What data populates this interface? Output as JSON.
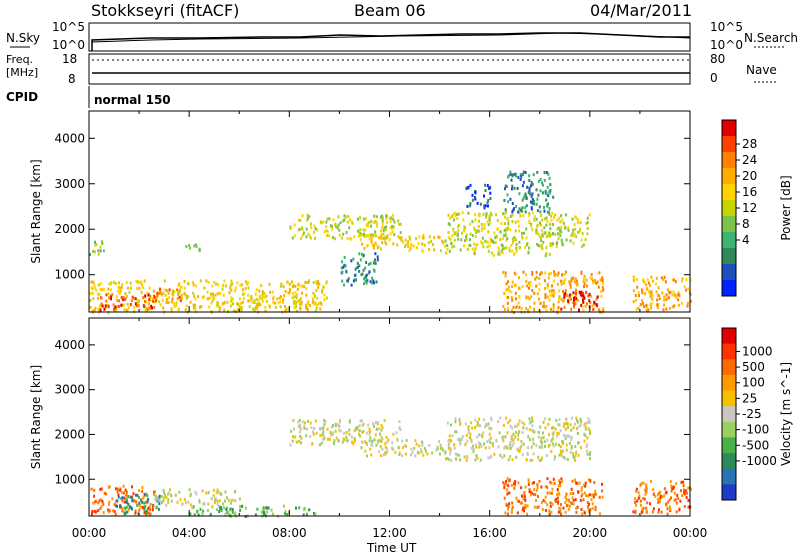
{
  "header": {
    "radar": "Stokkseyri (fitACF)",
    "beam": "Beam 06",
    "date": "04/Mar/2011"
  },
  "noise_panel": {
    "left_label": "N.Sky",
    "right_label": "N.Search",
    "left_ticks": [
      "10^5",
      "10^0"
    ],
    "right_ticks": [
      "10^5",
      "10^0"
    ]
  },
  "freq_panel": {
    "left_label_1": "Freq.",
    "left_label_2": "[MHz]",
    "left_ticks": [
      "18",
      "8"
    ],
    "right_label": "Nave",
    "right_ticks": [
      "80",
      "0"
    ]
  },
  "cpid": {
    "label": "CPID",
    "mode": "normal 150"
  },
  "chart_data": [
    {
      "type": "heatmap",
      "quantity": "Power",
      "xlabel": "",
      "ylabel": "Slant Range [km]",
      "xlim_hours": [
        0,
        24
      ],
      "ylim_km": [
        180,
        4600
      ],
      "y_ticks": [
        1000,
        2000,
        3000,
        4000
      ],
      "colorbar": {
        "label": "Power [dB]",
        "ticks": [
          "28",
          "24",
          "20",
          "16",
          "12",
          "8",
          "4"
        ],
        "colors": [
          "#0022ff",
          "#1f4fbf",
          "#2e8b57",
          "#3cb371",
          "#7cc34a",
          "#c8d400",
          "#ffd400",
          "#ffae00",
          "#ff7f00",
          "#ff4000",
          "#e00000"
        ]
      },
      "echo_regions": [
        {
          "t": [
            0.0,
            0.6
          ],
          "r": [
            1450,
            1800
          ],
          "level": 4
        },
        {
          "t": [
            0.0,
            9.5
          ],
          "r": [
            200,
            900
          ],
          "level": 6
        },
        {
          "t": [
            0.4,
            2.6
          ],
          "r": [
            250,
            600
          ],
          "level": 9
        },
        {
          "t": [
            2.4,
            3.8
          ],
          "r": [
            450,
            720
          ],
          "level": 8
        },
        {
          "t": [
            3.6,
            4.4
          ],
          "r": [
            1550,
            1700
          ],
          "level": 3
        },
        {
          "t": [
            8.0,
            12.5
          ],
          "r": [
            1800,
            2350
          ],
          "level": 5
        },
        {
          "t": [
            10.8,
            14.2
          ],
          "r": [
            1550,
            1900
          ],
          "level": 6
        },
        {
          "t": [
            10.0,
            11.5
          ],
          "r": [
            800,
            1500
          ],
          "level": 2
        },
        {
          "t": [
            14.2,
            18.5
          ],
          "r": [
            1450,
            2400
          ],
          "level": 5
        },
        {
          "t": [
            15.0,
            16.0
          ],
          "r": [
            2500,
            3000
          ],
          "level": 1
        },
        {
          "t": [
            16.5,
            18.5
          ],
          "r": [
            2400,
            3300
          ],
          "level": 2
        },
        {
          "t": [
            18.0,
            20.0
          ],
          "r": [
            1650,
            2350
          ],
          "level": 5
        },
        {
          "t": [
            16.5,
            20.5
          ],
          "r": [
            200,
            1100
          ],
          "level": 7
        },
        {
          "t": [
            18.8,
            20.3
          ],
          "r": [
            250,
            650
          ],
          "level": 10
        },
        {
          "t": [
            21.7,
            24.0
          ],
          "r": [
            250,
            1000
          ],
          "level": 7
        }
      ]
    },
    {
      "type": "heatmap",
      "quantity": "Velocity",
      "xlabel": "Time UT",
      "ylabel": "Slant Range [km]",
      "xlim_hours": [
        0,
        24
      ],
      "ylim_km": [
        180,
        4600
      ],
      "x_ticks": [
        "00:00",
        "04:00",
        "08:00",
        "12:00",
        "16:00",
        "20:00",
        "00:00"
      ],
      "y_ticks": [
        1000,
        2000,
        3000,
        4000
      ],
      "colorbar": {
        "label": "Velocity [m s^-1]",
        "ticks": [
          "1000",
          "500",
          "100",
          "25",
          "-25",
          "-100",
          "-500",
          "-1000"
        ],
        "colors": [
          "#1e3cc8",
          "#2a74b5",
          "#2e8b57",
          "#47b24a",
          "#9ad060",
          "#c8c8c0",
          "#f4c000",
          "#ff9a00",
          "#ff6a00",
          "#ff3300",
          "#e00000"
        ]
      },
      "echo_regions": [
        {
          "t": [
            0.0,
            2.7
          ],
          "r": [
            250,
            900
          ],
          "level": 8
        },
        {
          "t": [
            1.0,
            2.8
          ],
          "r": [
            250,
            700
          ],
          "level": 2
        },
        {
          "t": [
            2.6,
            6.0
          ],
          "r": [
            450,
            800
          ],
          "level": 5
        },
        {
          "t": [
            4.0,
            9.0
          ],
          "r": [
            200,
            450
          ],
          "level": 3
        },
        {
          "t": [
            8.0,
            12.5
          ],
          "r": [
            1800,
            2350
          ],
          "level": 5
        },
        {
          "t": [
            10.8,
            14.2
          ],
          "r": [
            1550,
            1900
          ],
          "level": 5
        },
        {
          "t": [
            14.2,
            20.0
          ],
          "r": [
            1450,
            2400
          ],
          "level": 5
        },
        {
          "t": [
            16.5,
            20.5
          ],
          "r": [
            250,
            1050
          ],
          "level": 8
        },
        {
          "t": [
            21.7,
            24.0
          ],
          "r": [
            250,
            1000
          ],
          "level": 8
        }
      ]
    }
  ]
}
